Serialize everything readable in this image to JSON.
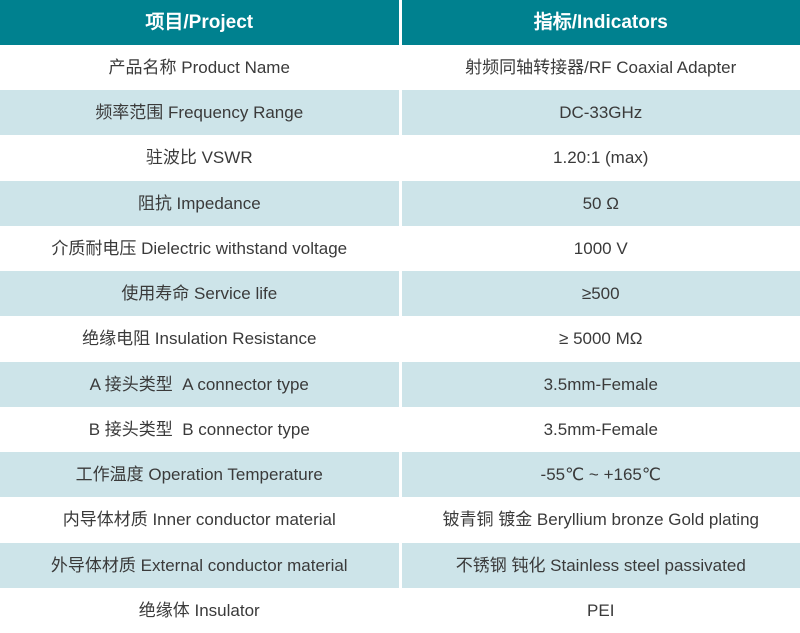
{
  "table": {
    "colors": {
      "header_bg": "#00818F",
      "header_text": "#FFFFFF",
      "alt_row_bg": "#CDE4E9",
      "row_bg": "#FFFFFF",
      "text": "#3A3A3A"
    },
    "header": {
      "project": "项目/Project",
      "indicators": "指标/Indicators"
    },
    "rows": [
      {
        "project": "产品名称 Product Name",
        "indicator": "射频同轴转接器/RF Coaxial Adapter"
      },
      {
        "project": "频率范围 Frequency Range",
        "indicator": "DC-33GHz"
      },
      {
        "project": "驻波比 VSWR",
        "indicator": "1.20:1 (max)"
      },
      {
        "project": "阻抗 Impedance",
        "indicator": "50 Ω"
      },
      {
        "project": "介质耐电压 Dielectric withstand voltage",
        "indicator": "1000 V"
      },
      {
        "project": "使用寿命 Service life",
        "indicator": "≥500"
      },
      {
        "project": "绝缘电阻 Insulation Resistance",
        "indicator": "≥ 5000 MΩ"
      },
      {
        "project": "A 接头类型  A connector type",
        "indicator": "3.5mm-Female"
      },
      {
        "project": "B 接头类型  B connector type",
        "indicator": "3.5mm-Female"
      },
      {
        "project": "工作温度 Operation Temperature",
        "indicator": "-55℃ ~ +165℃"
      },
      {
        "project": "内导体材质 Inner conductor material",
        "indicator": "铍青铜 镀金 Beryllium bronze Gold plating"
      },
      {
        "project": "外导体材质 External conductor material",
        "indicator": "不锈钢 钝化 Stainless steel passivated"
      },
      {
        "project": "绝缘体 Insulator",
        "indicator": "PEI"
      }
    ]
  }
}
